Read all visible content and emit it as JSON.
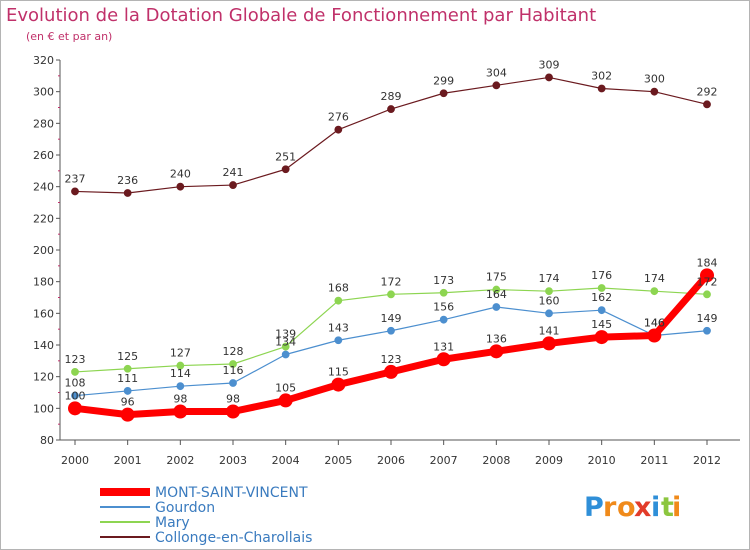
{
  "chart_data": {
    "type": "line",
    "title": "Evolution de la Dotation Globale de Fonctionnement par Habitant",
    "subtitle": "(en € et par an)",
    "xlabel": "",
    "ylabel": "",
    "categories": [
      "2000",
      "2001",
      "2002",
      "2003",
      "2004",
      "2005",
      "2006",
      "2007",
      "2008",
      "2009",
      "2010",
      "2011",
      "2012"
    ],
    "ylim": [
      80,
      320
    ],
    "yticks": [
      80,
      100,
      120,
      140,
      160,
      180,
      200,
      220,
      240,
      260,
      280,
      300,
      320
    ],
    "grid": false,
    "legend_position": "bottom-left",
    "series": [
      {
        "name": "Collonge-en-Charollais",
        "color": "#6b1a1f",
        "values": [
          237,
          236,
          240,
          241,
          251,
          276,
          289,
          299,
          304,
          309,
          302,
          300,
          292
        ]
      },
      {
        "name": "Mary",
        "color": "#8dd551",
        "values": [
          123,
          125,
          127,
          128,
          139,
          168,
          172,
          173,
          175,
          174,
          176,
          174,
          172
        ]
      },
      {
        "name": "Gourdon",
        "color": "#4c8fcf",
        "values": [
          108,
          111,
          114,
          116,
          134,
          143,
          149,
          156,
          164,
          160,
          162,
          146,
          149
        ]
      },
      {
        "name": "MONT-SAINT-VINCENT",
        "color": "#ff0000",
        "values": [
          100,
          96,
          98,
          98,
          105,
          115,
          123,
          131,
          136,
          141,
          145,
          146,
          184
        ]
      }
    ],
    "legend_order": [
      "MONT-SAINT-VINCENT",
      "Gourdon",
      "Mary",
      "Collonge-en-Charollais"
    ]
  },
  "logo": {
    "letters": [
      "P",
      "r",
      "o",
      "x",
      "i",
      "t",
      "i"
    ],
    "colors": [
      "#2f8fd8",
      "#f08a1a",
      "#f08a1a",
      "#e23c2a",
      "#2f8fd8",
      "#8cc63f",
      "#f08a1a"
    ]
  }
}
